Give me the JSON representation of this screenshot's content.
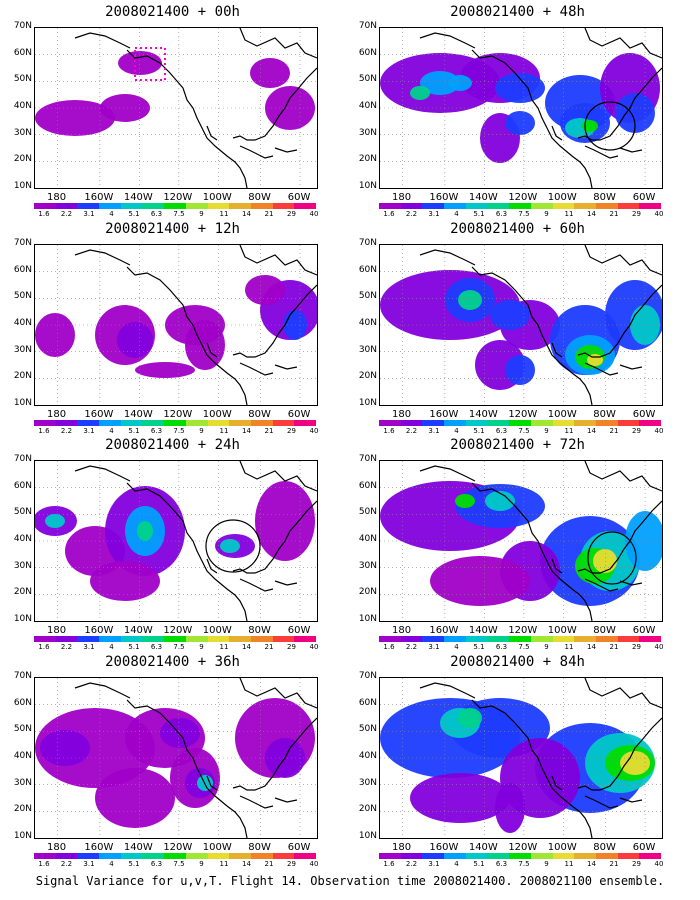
{
  "panels": [
    {
      "title": "2008021400  +  00h"
    },
    {
      "title": "2008021400  +  48h"
    },
    {
      "title": "2008021400  +  12h"
    },
    {
      "title": "2008021400  +  60h"
    },
    {
      "title": "2008021400  +  24h"
    },
    {
      "title": "2008021400  +  72h"
    },
    {
      "title": "2008021400  +  36h"
    },
    {
      "title": "2008021400  +  84h"
    }
  ],
  "axes": {
    "lat_labels": [
      "70N",
      "60N",
      "50N",
      "40N",
      "30N",
      "20N",
      "10N"
    ],
    "lon_labels": [
      "180",
      "160W",
      "140W",
      "120W",
      "100W",
      "80W",
      "60W"
    ]
  },
  "colorbar": {
    "labels": [
      "1.6",
      "2.2",
      "3.1",
      "4",
      "5.1",
      "6.3",
      "7.5",
      "9",
      "11",
      "14",
      "21",
      "29",
      "40"
    ],
    "colors": [
      "#a000c8",
      "#8200dc",
      "#1e3cff",
      "#00a0ff",
      "#00c8c8",
      "#00d28c",
      "#00dc00",
      "#a0e632",
      "#e6dc32",
      "#e6af2d",
      "#f08228",
      "#fa3c3c",
      "#f00082"
    ]
  },
  "caption": "Signal Variance for u,v,T. Flight 14. Observation time 2008021400. 2008021100 ensemble."
}
